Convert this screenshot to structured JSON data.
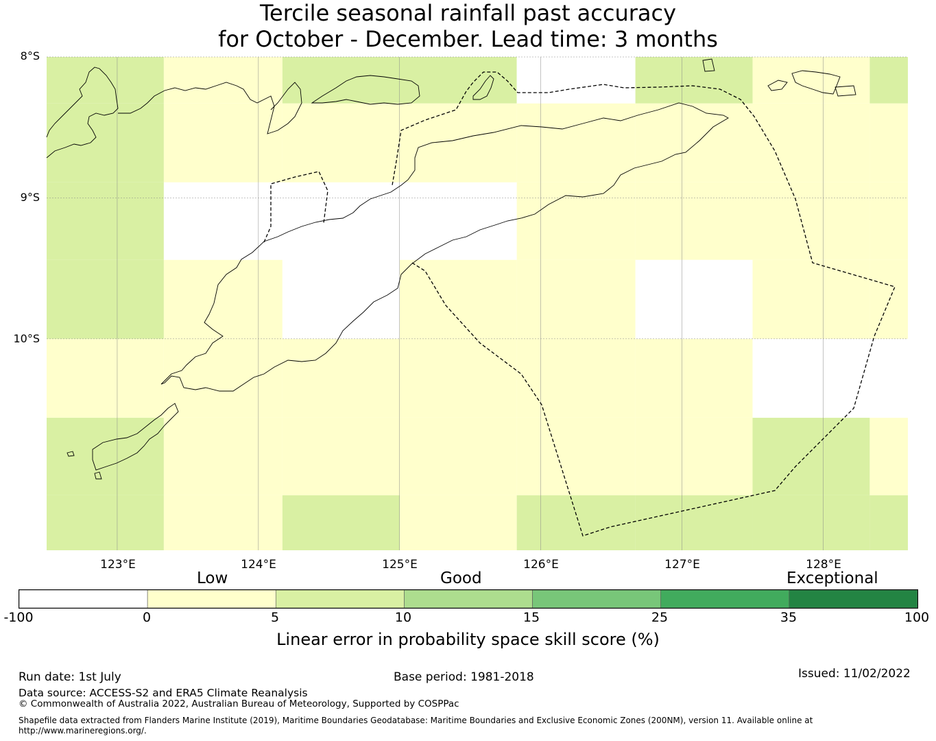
{
  "title": {
    "line1": "Tercile seasonal rainfall past accuracy",
    "line2": "for October - December. Lead time: 3 months"
  },
  "map": {
    "lat_labels": [
      "8°S",
      "9°S",
      "10°S"
    ],
    "lon_labels": [
      "123°E",
      "124°E",
      "125°E",
      "126°E",
      "127°E",
      "128°E"
    ],
    "lon_range": [
      122.5,
      128.6
    ],
    "lat_range": [
      -8.0,
      -11.5
    ],
    "grid_cells": {
      "columns_lon": [
        122.5,
        123.33,
        124.17,
        125.0,
        125.83,
        126.67,
        127.5,
        128.33,
        128.6
      ],
      "rows_lat": [
        -8.0,
        -8.33,
        -8.89,
        -9.44,
        -10.0,
        -10.56,
        -11.11,
        -11.5
      ],
      "values": [
        [
          "light-green",
          "light-yellow",
          "light-green",
          "light-green",
          "missing",
          "light-green",
          "light-yellow",
          "light-green"
        ],
        [
          "light-green",
          "light-yellow",
          "light-yellow",
          "light-yellow",
          "light-yellow",
          "light-yellow",
          "light-yellow",
          "light-yellow"
        ],
        [
          "light-green",
          "missing",
          "missing",
          "missing",
          "light-yellow",
          "light-yellow",
          "light-yellow",
          "light-yellow"
        ],
        [
          "light-green",
          "light-yellow",
          "missing",
          "light-yellow",
          "light-yellow",
          "missing",
          "light-yellow",
          "light-yellow"
        ],
        [
          "light-yellow",
          "light-yellow",
          "light-yellow",
          "light-yellow",
          "light-yellow",
          "light-yellow",
          "missing",
          "missing"
        ],
        [
          "light-green",
          "light-yellow",
          "light-yellow",
          "light-yellow",
          "light-yellow",
          "light-yellow",
          "light-green",
          "light-yellow"
        ],
        [
          "light-green",
          "light-yellow",
          "light-green",
          "light-yellow",
          "light-green",
          "light-green",
          "light-green",
          "light-green"
        ]
      ]
    }
  },
  "legend": {
    "categories": [
      "Low",
      "Good",
      "Exceptional"
    ],
    "ticks": [
      "-100",
      "0",
      "5",
      "10",
      "15",
      "25",
      "35",
      "100"
    ],
    "colors": [
      "#ffffff",
      "#ffffcc",
      "#d9f0a3",
      "#addd8e",
      "#78c679",
      "#41ab5d",
      "#238443"
    ],
    "title": "Linear error in probability space skill score (%)"
  },
  "colors": {
    "missing": "#ffffff",
    "light-yellow": "#ffffcc",
    "light-green": "#d9f0a3"
  },
  "footer": {
    "run_date": "Run date: 1st July",
    "base_period": "Base period: 1981-2018",
    "issued": "Issued: 11/02/2022",
    "data_source": "Data source: ACCESS-S2 and ERA5 Climate Reanalysis",
    "copyright": "© Commonwealth of Australia 2022, Australian Bureau of Meteorology, Supported by COSPPac",
    "shapefile_line1": "Shapefile data extracted from Flanders Marine Institute (2019), Maritime Boundaries Geodatabase: Maritime Boundaries and Exclusive Economic Zones (200NM), version 11. Available online at",
    "shapefile_line2": "http://www.marineregions.org/."
  }
}
